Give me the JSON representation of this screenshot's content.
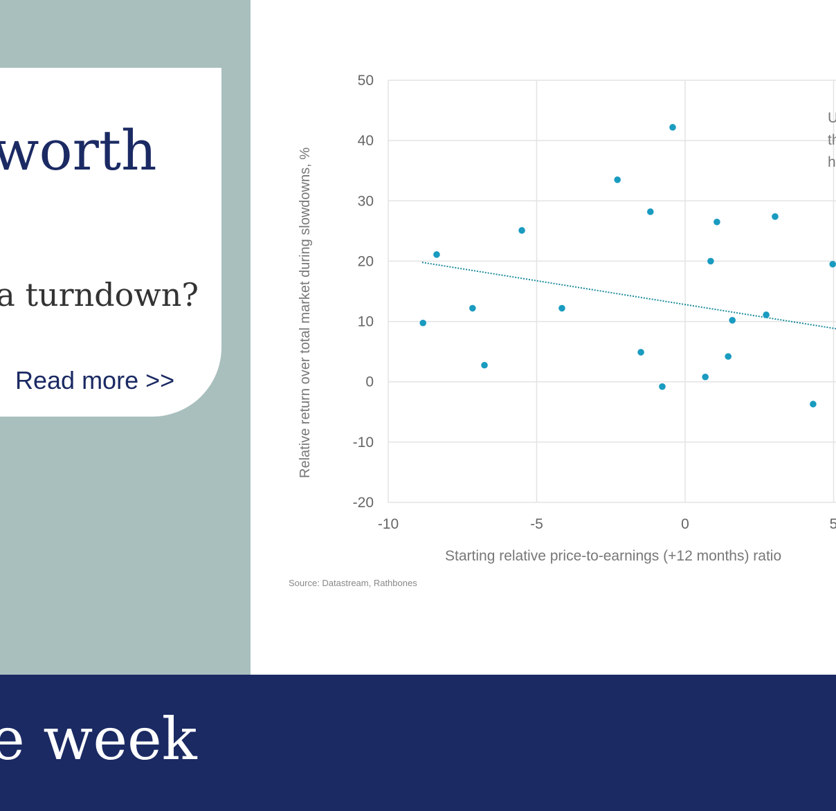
{
  "card": {
    "title": "worth",
    "question": "a turndown?",
    "link": "Read more >>"
  },
  "banner": {
    "title": "e week"
  },
  "chart_data": {
    "type": "scatter",
    "y_label": "Relative return over total market during slowdowns, %",
    "x_label": "Starting relative price-to-earnings (+12 months) ratio",
    "source": "Source: Datastream, Rathbones",
    "annotation": [
      "U",
      "th",
      "h"
    ],
    "color": "#1a9bc0",
    "x": [
      -8.83,
      -8.37,
      -7.16,
      -6.76,
      -5.5,
      -4.15,
      -2.28,
      -1.49,
      -1.17,
      -0.77,
      -0.42,
      0.68,
      0.86,
      1.07,
      1.45,
      1.59,
      2.73,
      3.03,
      4.31,
      4.97
    ],
    "values": [
      9.75,
      21.1,
      12.2,
      2.75,
      25.1,
      12.2,
      33.5,
      4.9,
      28.2,
      -0.8,
      42.2,
      0.8,
      20.0,
      26.5,
      4.2,
      10.2,
      11.1,
      27.4,
      -3.7,
      19.5
    ],
    "trendline": {
      "x": [
        -8.86,
        5.08
      ],
      "values": [
        19.8,
        8.8
      ],
      "color": "#1a8a9a"
    },
    "xlim": [
      -10,
      10
    ],
    "ylim": [
      -20,
      50
    ],
    "xticks": [
      -10,
      -5,
      0,
      5
    ],
    "yticks": [
      -20,
      -10,
      0,
      10,
      20,
      30,
      40,
      50
    ],
    "grid": true
  }
}
